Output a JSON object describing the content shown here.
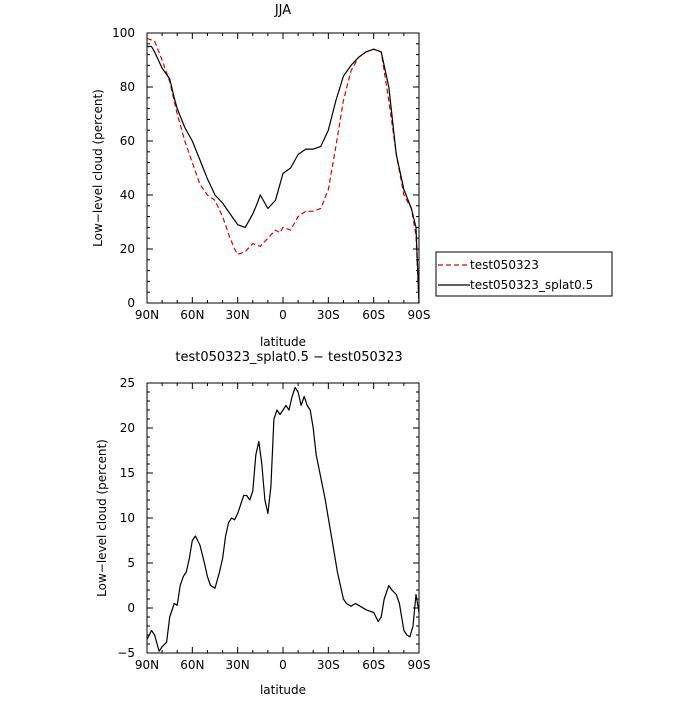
{
  "chart_data": [
    {
      "type": "line",
      "title": "JJA",
      "xlabel": "latitude",
      "ylabel": "Low−level cloud (percent)",
      "xlim": [
        90,
        -90
      ],
      "ylim": [
        0,
        100
      ],
      "x_ticks": [
        90,
        60,
        30,
        0,
        -30,
        -60,
        -90
      ],
      "x_tick_labels": [
        "90N",
        "60N",
        "30N",
        "0",
        "30S",
        "60S",
        "90S"
      ],
      "y_ticks": [
        0,
        20,
        40,
        60,
        80,
        100
      ],
      "y_tick_labels": [
        "0",
        "20",
        "40",
        "60",
        "80",
        "100"
      ],
      "legend_position": "right",
      "series": [
        {
          "name": "test050323",
          "color": "#e00000",
          "dash": "dashed",
          "x": [
            90,
            85,
            80,
            75,
            70,
            65,
            60,
            55,
            50,
            45,
            40,
            35,
            32,
            30,
            25,
            20,
            15,
            10,
            5,
            2,
            0,
            -5,
            -10,
            -15,
            -20,
            -25,
            -30,
            -35,
            -40,
            -45,
            -50,
            -55,
            -60,
            -65,
            -70,
            -75,
            -80,
            -85,
            -88,
            -90
          ],
          "y": [
            98,
            97,
            90,
            82,
            70,
            60,
            52,
            44,
            40,
            38,
            32,
            24,
            20,
            18,
            19,
            22,
            21,
            24,
            27,
            26,
            28,
            27,
            32,
            34,
            34,
            35,
            42,
            58,
            75,
            86,
            91,
            93,
            94,
            93,
            75,
            55,
            40,
            35,
            25,
            0
          ]
        },
        {
          "name": "test050323_splat0.5",
          "color": "#000000",
          "dash": "solid",
          "x": [
            90,
            87,
            85,
            80,
            75,
            72,
            70,
            65,
            60,
            55,
            50,
            45,
            40,
            35,
            30,
            25,
            20,
            17,
            15,
            10,
            5,
            2,
            0,
            -5,
            -10,
            -15,
            -20,
            -25,
            -30,
            -35,
            -40,
            -45,
            -50,
            -55,
            -60,
            -65,
            -70,
            -75,
            -80,
            -85,
            -88,
            -90
          ],
          "y": [
            95,
            95,
            93,
            87,
            83,
            76,
            72,
            65,
            60,
            53,
            46,
            40,
            37,
            33,
            29,
            28,
            33,
            37,
            40,
            35,
            38,
            44,
            48,
            50,
            55,
            57,
            57,
            58,
            64,
            75,
            84,
            88,
            91,
            93,
            94,
            93,
            80,
            55,
            42,
            35,
            28,
            0
          ]
        }
      ]
    },
    {
      "type": "line",
      "title": "test050323_splat0.5 − test050323",
      "xlabel": "latitude",
      "ylabel": "Low−level cloud (percent)",
      "xlim": [
        90,
        -90
      ],
      "ylim": [
        -5,
        25
      ],
      "x_ticks": [
        90,
        60,
        30,
        0,
        -30,
        -60,
        -90
      ],
      "x_tick_labels": [
        "90N",
        "60N",
        "30N",
        "0",
        "30S",
        "60S",
        "90S"
      ],
      "y_ticks": [
        -5,
        0,
        5,
        10,
        15,
        20,
        25
      ],
      "y_tick_labels": [
        "−5",
        "0",
        "5",
        "10",
        "15",
        "20",
        "25"
      ],
      "series": [
        {
          "color": "#000000",
          "dash": "solid",
          "x": [
            90,
            87,
            85,
            82,
            80,
            77,
            75,
            72,
            70,
            68,
            66,
            64,
            62,
            60,
            58,
            55,
            52,
            50,
            48,
            45,
            42,
            40,
            38,
            36,
            34,
            32,
            30,
            28,
            26,
            24,
            22,
            20,
            18,
            16,
            14,
            12,
            10,
            8,
            6,
            4,
            2,
            0,
            -2,
            -4,
            -6,
            -8,
            -10,
            -12,
            -14,
            -16,
            -18,
            -20,
            -22,
            -25,
            -28,
            -30,
            -33,
            -36,
            -38,
            -40,
            -42,
            -45,
            -48,
            -50,
            -55,
            -60,
            -63,
            -65,
            -67,
            -70,
            -72,
            -75,
            -77,
            -80,
            -82,
            -84,
            -86,
            -88,
            -89,
            -90
          ],
          "y": [
            -3.5,
            -2.5,
            -3.0,
            -4.8,
            -4.3,
            -3.8,
            -1.0,
            0.5,
            0.3,
            2.5,
            3.5,
            4.0,
            5.5,
            7.5,
            8.0,
            7.0,
            5.0,
            3.5,
            2.5,
            2.2,
            4.0,
            5.5,
            8.0,
            9.5,
            10.0,
            9.8,
            10.5,
            11.5,
            12.5,
            12.5,
            12.0,
            13.0,
            17.0,
            18.5,
            16.0,
            12.0,
            10.5,
            13.5,
            21.0,
            22.0,
            21.5,
            22.0,
            22.5,
            22.0,
            23.5,
            24.5,
            24.0,
            22.5,
            23.5,
            22.5,
            22.0,
            20.0,
            17.0,
            14.5,
            12.0,
            10.0,
            7.0,
            4.0,
            2.5,
            1.0,
            0.5,
            0.2,
            0.5,
            0.3,
            -0.2,
            -0.5,
            -1.5,
            -1.0,
            1.0,
            2.5,
            2.0,
            1.5,
            0.5,
            -2.5,
            -3.0,
            -3.2,
            -2.0,
            1.5,
            0.5,
            -0.5
          ]
        }
      ]
    }
  ]
}
